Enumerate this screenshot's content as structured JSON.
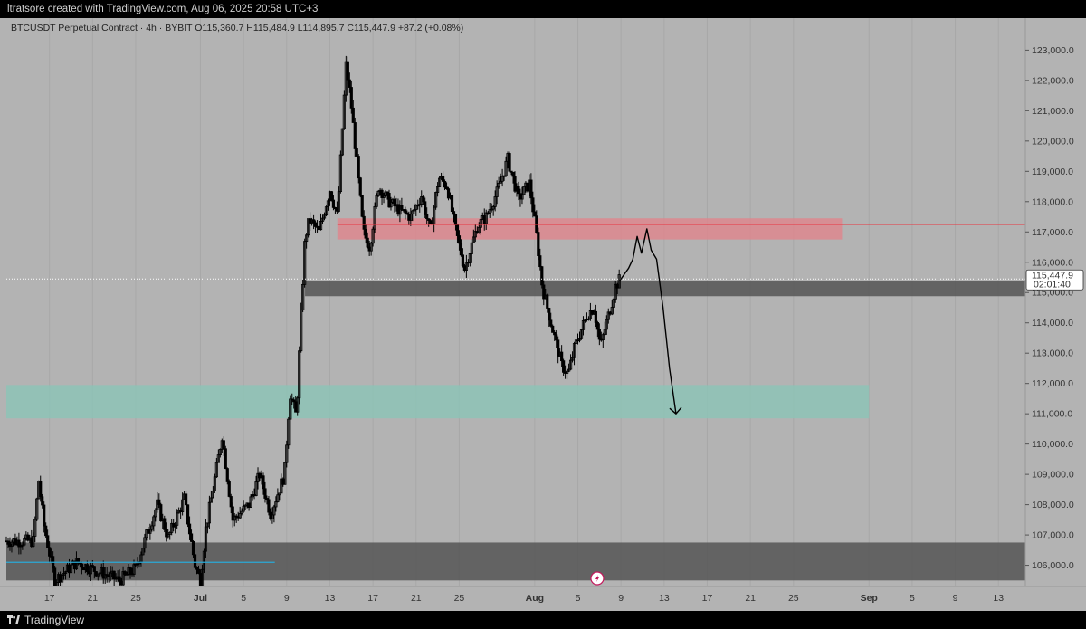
{
  "topbar": {
    "author_line": "ltratsore created with TradingView.com, Aug 06, 2025 20:58 UTC+3"
  },
  "footer": {
    "brand": "TradingView"
  },
  "colors": {
    "chart_bg": "#b3b3b3",
    "candle": "#000000",
    "resistance_zone": "#e0848c",
    "resistance_line": "#e8343f",
    "support_zone": "#8bc4b6",
    "dark_zone": "#555555",
    "cyan_line": "#2aa9d6"
  },
  "chart_data": {
    "type": "candlestick",
    "header": "BTCUSDT Perpetual Contract · 4h · BYBIT  O115,360.7  H115,484.9  L114,895.7  C115,447.9  +87.2 (+0.08%)",
    "symbol": "BTCUSDT Perpetual Contract",
    "interval": "4h",
    "exchange": "BYBIT",
    "ohlc": {
      "open": 115360.7,
      "high": 115484.9,
      "low": 114895.7,
      "close": 115447.9,
      "change": "+87.2 (+0.08%)"
    },
    "last_price_label": "115,447.9",
    "countdown_label": "02:01:40",
    "ylim": [
      105300,
      123400
    ],
    "y_ticks": [
      "106,000.0",
      "107,000.0",
      "108,000.0",
      "109,000.0",
      "110,000.0",
      "111,000.0",
      "112,000.0",
      "113,000.0",
      "114,000.0",
      "115,000.0",
      "116,000.0",
      "117,000.0",
      "118,000.0",
      "119,000.0",
      "120,000.0",
      "121,000.0",
      "122,000.0",
      "123,000.0"
    ],
    "x_ticks": [
      "17",
      "21",
      "25",
      "Jul",
      "5",
      "9",
      "13",
      "17",
      "21",
      "25",
      "Aug",
      "5",
      "9",
      "13",
      "17",
      "21",
      "25",
      "Sep",
      "5",
      "9",
      "13"
    ],
    "x_tick_days": [
      -13.5,
      -9.5,
      -5.5,
      0.5,
      4.5,
      8.5,
      12.5,
      16.5,
      20.5,
      24.5,
      31.5,
      35.5,
      39.5,
      43.5,
      47.5,
      51.5,
      55.5,
      62.5,
      66.5,
      70.5,
      74.5
    ],
    "x_range_days": [
      -17.5,
      77
    ],
    "key_points": [
      {
        "day": -15.0,
        "price": 106800
      },
      {
        "day": -14.5,
        "price": 108800
      },
      {
        "day": -14.0,
        "price": 107300
      },
      {
        "day": -13.0,
        "price": 105500
      },
      {
        "day": -11.0,
        "price": 106100
      },
      {
        "day": -9.0,
        "price": 105800
      },
      {
        "day": -7.0,
        "price": 105500
      },
      {
        "day": -5.5,
        "price": 105900
      },
      {
        "day": -4.5,
        "price": 107000
      },
      {
        "day": -3.5,
        "price": 108000
      },
      {
        "day": -2.5,
        "price": 106900
      },
      {
        "day": -1.0,
        "price": 108200
      },
      {
        "day": 0.0,
        "price": 106000
      },
      {
        "day": 0.5,
        "price": 105500
      },
      {
        "day": 1.0,
        "price": 107200
      },
      {
        "day": 2.0,
        "price": 109200
      },
      {
        "day": 2.5,
        "price": 110300
      },
      {
        "day": 3.5,
        "price": 107500
      },
      {
        "day": 5.0,
        "price": 108000
      },
      {
        "day": 6.0,
        "price": 109000
      },
      {
        "day": 7.0,
        "price": 107700
      },
      {
        "day": 8.3,
        "price": 109000
      },
      {
        "day": 8.8,
        "price": 111700
      },
      {
        "day": 9.4,
        "price": 110900
      },
      {
        "day": 9.8,
        "price": 114000
      },
      {
        "day": 10.2,
        "price": 116800
      },
      {
        "day": 10.6,
        "price": 117400
      },
      {
        "day": 11.5,
        "price": 117000
      },
      {
        "day": 12.5,
        "price": 118400
      },
      {
        "day": 13.2,
        "price": 117500
      },
      {
        "day": 14.0,
        "price": 122500
      },
      {
        "day": 14.4,
        "price": 121500
      },
      {
        "day": 15.0,
        "price": 119300
      },
      {
        "day": 15.6,
        "price": 117000
      },
      {
        "day": 16.2,
        "price": 116500
      },
      {
        "day": 17.0,
        "price": 118500
      },
      {
        "day": 18.0,
        "price": 118000
      },
      {
        "day": 19.0,
        "price": 117700
      },
      {
        "day": 20.0,
        "price": 117500
      },
      {
        "day": 21.0,
        "price": 118200
      },
      {
        "day": 21.8,
        "price": 117000
      },
      {
        "day": 22.6,
        "price": 118800
      },
      {
        "day": 23.4,
        "price": 118500
      },
      {
        "day": 24.2,
        "price": 117000
      },
      {
        "day": 25.0,
        "price": 115800
      },
      {
        "day": 26.2,
        "price": 117200
      },
      {
        "day": 27.0,
        "price": 117500
      },
      {
        "day": 28.0,
        "price": 118300
      },
      {
        "day": 29.0,
        "price": 119400
      },
      {
        "day": 30.0,
        "price": 118100
      },
      {
        "day": 31.0,
        "price": 118600
      },
      {
        "day": 31.6,
        "price": 117100
      },
      {
        "day": 32.2,
        "price": 115200
      },
      {
        "day": 33.0,
        "price": 114000
      },
      {
        "day": 34.0,
        "price": 112600
      },
      {
        "day": 34.6,
        "price": 112300
      },
      {
        "day": 35.2,
        "price": 113200
      },
      {
        "day": 36.4,
        "price": 114300
      },
      {
        "day": 37.0,
        "price": 114500
      },
      {
        "day": 37.6,
        "price": 113200
      },
      {
        "day": 38.0,
        "price": 113800
      },
      {
        "day": 38.6,
        "price": 114600
      },
      {
        "day": 39.0,
        "price": 115200
      },
      {
        "day": 39.4,
        "price": 115450
      }
    ],
    "zones": [
      {
        "name": "resistance",
        "from_day": 13.2,
        "to_day": 60.0,
        "low": 116750,
        "high": 117450
      },
      {
        "name": "mid",
        "from_day": 10.2,
        "to_day": 77.0,
        "low": 114880,
        "high": 115380
      },
      {
        "name": "support",
        "from_day": -17.5,
        "to_day": 62.5,
        "low": 110850,
        "high": 111950
      },
      {
        "name": "demand",
        "from_day": -17.5,
        "to_day": 77.0,
        "low": 105500,
        "high": 106750
      }
    ],
    "lines": [
      {
        "name": "resistance-line",
        "from_day": 13.2,
        "price": 117250
      },
      {
        "name": "cyan-line",
        "from_day": -17.5,
        "to_day": 7.4,
        "price": 106100
      }
    ],
    "projection": [
      {
        "day": 39.4,
        "price": 115400
      },
      {
        "day": 40.2,
        "price": 115800
      },
      {
        "day": 40.6,
        "price": 116100
      },
      {
        "day": 41.0,
        "price": 116850
      },
      {
        "day": 41.4,
        "price": 116300
      },
      {
        "day": 41.9,
        "price": 117100
      },
      {
        "day": 42.3,
        "price": 116400
      },
      {
        "day": 42.8,
        "price": 116100
      },
      {
        "day": 43.4,
        "price": 114500
      },
      {
        "day": 44.0,
        "price": 112500
      },
      {
        "day": 44.6,
        "price": 111000
      }
    ]
  }
}
